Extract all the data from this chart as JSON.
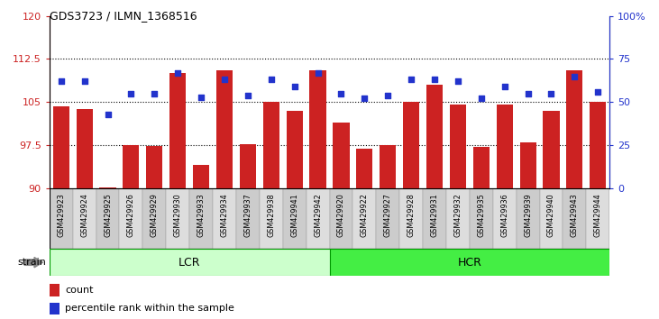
{
  "title": "GDS3723 / ILMN_1368516",
  "samples": [
    "GSM429923",
    "GSM429924",
    "GSM429925",
    "GSM429926",
    "GSM429929",
    "GSM429930",
    "GSM429933",
    "GSM429934",
    "GSM429937",
    "GSM429938",
    "GSM429941",
    "GSM429942",
    "GSM429920",
    "GSM429922",
    "GSM429927",
    "GSM429928",
    "GSM429931",
    "GSM429932",
    "GSM429935",
    "GSM429936",
    "GSM429939",
    "GSM429940",
    "GSM429943",
    "GSM429944"
  ],
  "bar_values": [
    104.2,
    103.8,
    90.2,
    97.5,
    97.3,
    110.0,
    94.0,
    110.5,
    97.6,
    105.0,
    103.5,
    110.5,
    101.5,
    96.9,
    97.5,
    105.0,
    108.0,
    104.5,
    97.2,
    104.5,
    98.0,
    103.5,
    110.5,
    105.0
  ],
  "percentile_values": [
    62,
    62,
    43,
    55,
    55,
    67,
    53,
    63,
    54,
    63,
    59,
    67,
    55,
    52,
    54,
    63,
    63,
    62,
    52,
    59,
    55,
    55,
    65,
    56
  ],
  "bar_color": "#cc2222",
  "dot_color": "#2233cc",
  "ylim_left": [
    90,
    120
  ],
  "ylim_right": [
    0,
    100
  ],
  "yticks_left": [
    90,
    97.5,
    105,
    112.5,
    120
  ],
  "ytick_labels_left": [
    "90",
    "97.5",
    "105",
    "112.5",
    "120"
  ],
  "yticks_right": [
    0,
    25,
    50,
    75,
    100
  ],
  "ytick_labels_right": [
    "0",
    "25",
    "50",
    "75",
    "100%"
  ],
  "hlines": [
    97.5,
    105.0,
    112.5
  ],
  "group_labels": [
    "LCR",
    "HCR"
  ],
  "group_split": 12,
  "group_color_lcr": "#ccffcc",
  "group_color_hcr": "#44ee44",
  "strain_label": "strain",
  "legend_bar_label": "count",
  "legend_dot_label": "percentile rank within the sample",
  "bar_width": 0.7,
  "baseline": 90,
  "tick_shade_even": "#cccccc",
  "tick_shade_odd": "#dddddd",
  "fig_bg": "#ffffff"
}
